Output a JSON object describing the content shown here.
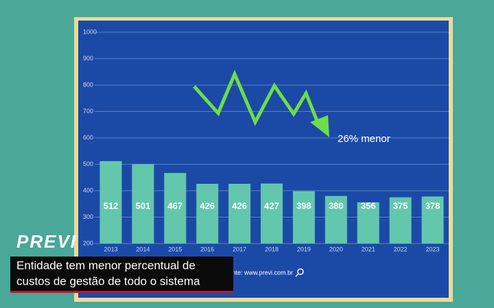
{
  "chart_data": {
    "type": "bar",
    "categories": [
      "2013",
      "2014",
      "2015",
      "2016",
      "2017",
      "2018",
      "2019",
      "2020",
      "2021",
      "2022",
      "2023"
    ],
    "values": [
      512,
      501,
      467,
      426,
      426,
      427,
      398,
      380,
      356,
      375,
      378
    ],
    "color": "#63c7ad",
    "ylim": [
      200,
      1000
    ],
    "yticks": [
      200,
      300,
      400,
      500,
      600,
      700,
      800,
      900,
      1000
    ],
    "grid": true,
    "annotation": "26% menor",
    "source": "Fonte: www.previ.com.br"
  },
  "caption": {
    "brand": "PREVI",
    "lines": [
      "Entidade tem menor percentual de",
      "custos de gestão de todo o sistema"
    ]
  }
}
